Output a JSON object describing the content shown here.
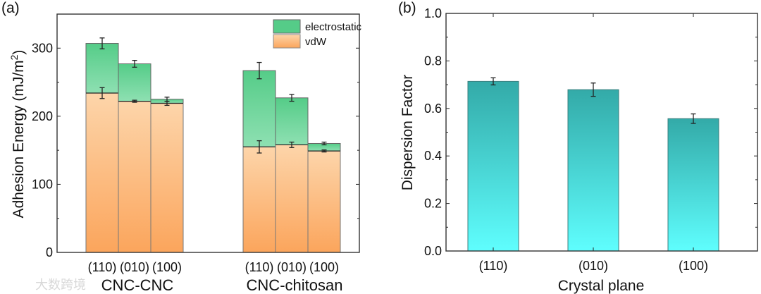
{
  "chart_data": [
    {
      "type": "bar",
      "stacked": true,
      "panel_label": "(a)",
      "ylabel": "Adhesion Energy (mJ/m",
      "ylabel_sup": "2",
      "ylabel_close": ")",
      "ylim": [
        0,
        350
      ],
      "yticks": [
        0,
        100,
        200,
        300
      ],
      "groups": [
        "CNC-CNC",
        "CNC-chitosan"
      ],
      "categories": [
        "(110)",
        "(010)",
        "(100)"
      ],
      "series": [
        {
          "name": "vdW",
          "color_top": "#fdd5aa",
          "color_bottom": "#fba55c",
          "values": [
            [
              234,
              222,
              219
            ],
            [
              155,
              158,
              149
            ]
          ],
          "errors": [
            [
              8,
              1.5,
              3
            ],
            [
              9,
              4,
              1.5
            ]
          ]
        },
        {
          "name": "electrostatic",
          "color_top": "#55cc88",
          "color_bottom": "#8ee0b2",
          "totals": [
            [
              307,
              277,
              225
            ],
            [
              267,
              227,
              160
            ]
          ],
          "errors": [
            [
              8,
              5,
              3
            ],
            [
              12,
              5,
              2
            ]
          ]
        }
      ],
      "legend": [
        "electrostatic",
        "vdW"
      ],
      "legend_position": "top-right"
    },
    {
      "type": "bar",
      "panel_label": "(b)",
      "xlabel": "Crystal plane",
      "ylabel": "Dispersion Factor",
      "ylim": [
        0,
        1.0
      ],
      "yticks": [
        "0.0",
        "0.2",
        "0.4",
        "0.6",
        "0.8",
        "1.0"
      ],
      "categories": [
        "(110)",
        "(010)",
        "(100)"
      ],
      "values": [
        0.714,
        0.679,
        0.557
      ],
      "errors": [
        0.015,
        0.028,
        0.02
      ],
      "color_top": "#33aaa8",
      "color_bottom": "#5ffefe"
    }
  ],
  "watermark": "大数跨境"
}
